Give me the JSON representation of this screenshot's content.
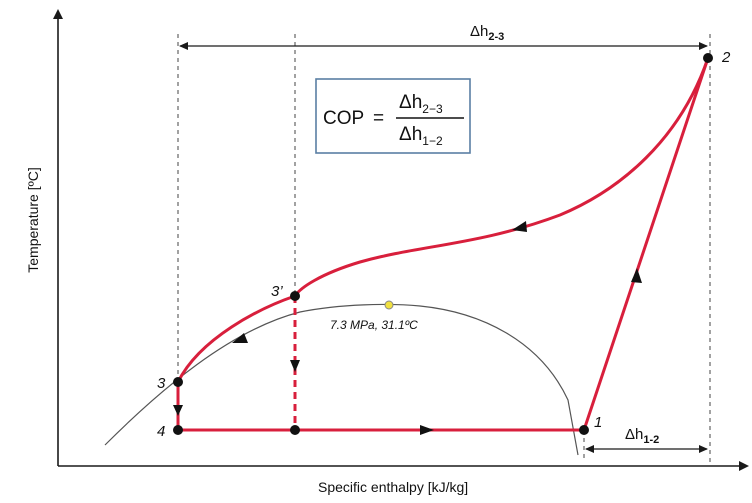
{
  "axes": {
    "x_label": "Specific enthalpy [kJ/kg]",
    "y_label": "Temperature [ºC]"
  },
  "critical_point": {
    "label": "7.3 MPa, 31.1ºC",
    "color": "#f0e040"
  },
  "state_points": {
    "p1": "1",
    "p2": "2",
    "p3": "3",
    "p3prime": "3’",
    "p4": "4"
  },
  "dimensions": {
    "dh23": {
      "symbol": "Δh",
      "sub": "2-3"
    },
    "dh12": {
      "symbol": "Δh",
      "sub": "1-2"
    }
  },
  "formula": {
    "lhs": "COP",
    "equals": "=",
    "numerator": {
      "symbol": "Δh",
      "sub": "2−3"
    },
    "denominator": {
      "symbol": "Δh",
      "sub": "1−2"
    },
    "box_border_color": "#5a7fa3"
  },
  "colors": {
    "cycle": "#d81f3c",
    "dome": "#555555"
  }
}
